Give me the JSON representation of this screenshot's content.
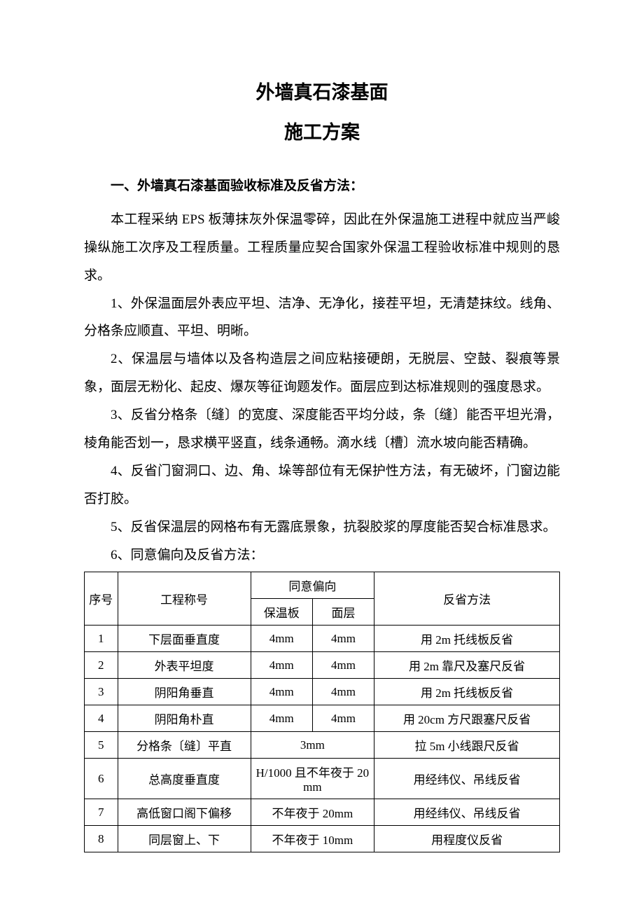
{
  "title": "外墙真石漆基面",
  "subtitle": "施工方案",
  "section_heading": "一、外墙真石漆基面验收标准及反省方法：",
  "paragraphs": {
    "p0": "本工程采纳 EPS 板薄抹灰外保温零碎，因此在外保温施工进程中就应当严峻操纵施工次序及工程质量。工程质量应契合国家外保温工程验收标准中规则的恳求。",
    "p1": "1、外保温面层外表应平坦、洁净、无净化，接茬平坦，无清楚抹纹。线角、分格条应顺直、平坦、明晰。",
    "p2": "2、保温层与墙体以及各构造层之间应粘接硬朗，无脱层、空鼓、裂痕等景象，面层无粉化、起皮、爆灰等征询题发作。面层应到达标准规则的强度恳求。",
    "p3": "3、反省分格条〔缝〕的宽度、深度能否平均分歧，条〔缝〕能否平坦光滑，棱角能否划一，恳求横平竖直，线条通畅。滴水线〔槽〕流水坡向能否精确。",
    "p4": "4、反省门窗洞口、边、角、垛等部位有无保护性方法，有无破坏，门窗边能否打胶。",
    "p5": "5、反省保温层的网格布有无露底景象，抗裂胶浆的厚度能否契合标准恳求。",
    "p6": "6、同意偏向及反省方法："
  },
  "table": {
    "headers": {
      "seq": "序号",
      "name": "工程称号",
      "deviation": "同意偏向",
      "dev_insulation": "保温板",
      "dev_surface": "面层",
      "method": "反省方法"
    },
    "rows": [
      {
        "seq": "1",
        "name": "下层面垂直度",
        "dev1": "4mm",
        "dev2": "4mm",
        "merged": false,
        "method": "用 2m 托线板反省"
      },
      {
        "seq": "2",
        "name": "外表平坦度",
        "dev1": "4mm",
        "dev2": "4mm",
        "merged": false,
        "method": "用 2m 靠尺及塞尺反省"
      },
      {
        "seq": "3",
        "name": "阴阳角垂直",
        "dev1": "4mm",
        "dev2": "4mm",
        "merged": false,
        "method": "用 2m 托线板反省"
      },
      {
        "seq": "4",
        "name": "阴阳角朴直",
        "dev1": "4mm",
        "dev2": "4mm",
        "merged": false,
        "method": "用 20cm 方尺跟塞尺反省"
      },
      {
        "seq": "5",
        "name": "分格条〔缝〕平直",
        "dev1": "3mm",
        "dev2": "",
        "merged": true,
        "method": "拉 5m 小线跟尺反省"
      },
      {
        "seq": "6",
        "name": "总高度垂直度",
        "dev1": "H/1000 且不年夜于 20 mm",
        "dev2": "",
        "merged": true,
        "method": "用经纬仪、吊线反省"
      },
      {
        "seq": "7",
        "name": "高低窗口阁下偏移",
        "dev1": "不年夜于 20mm",
        "dev2": "",
        "merged": true,
        "method": "用经纬仪、吊线反省"
      },
      {
        "seq": "8",
        "name": "同层窗上、下",
        "dev1": "不年夜于 10mm",
        "dev2": "",
        "merged": true,
        "method": "用程度仪反省"
      }
    ]
  }
}
